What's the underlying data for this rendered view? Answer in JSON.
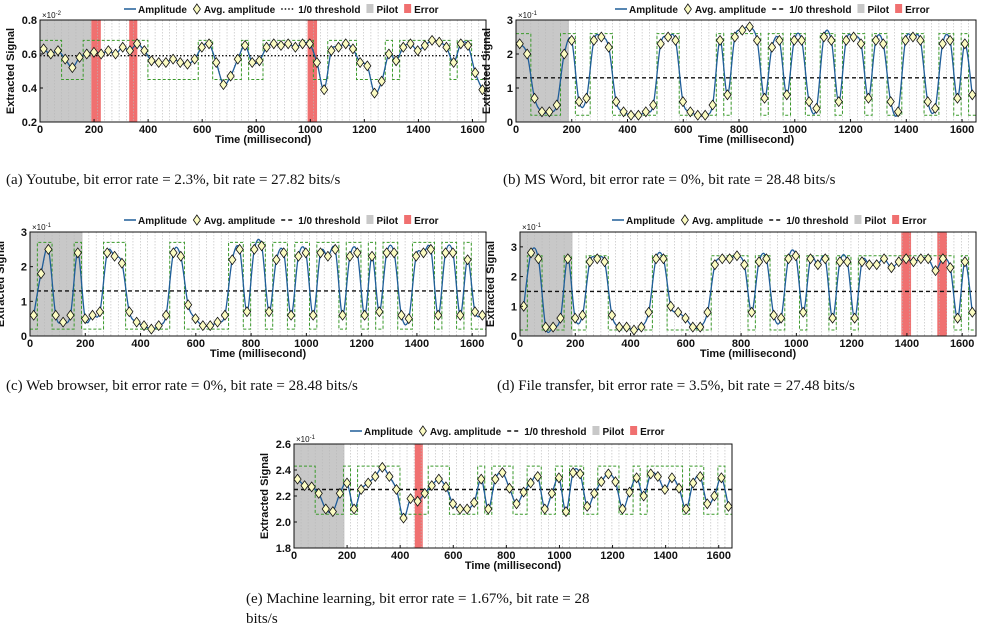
{
  "figure": {
    "legend": [
      "Amplitude",
      "Avg. amplitude",
      "1/0 threshold",
      "Pilot",
      "Error"
    ],
    "ylabel": "Extracted Signal",
    "xlabel": "Time (millisecond)",
    "xticks": [
      "0",
      "200",
      "400",
      "600",
      "800",
      "1000",
      "1200",
      "1400",
      "1600"
    ]
  },
  "captions": [
    "(a)  Youtube, bit error rate = 2.3%, bit rate = 27.82 bits/s",
    "(b)  MS Word, bit error rate = 0%, bit rate = 28.48 bits/s",
    "(c)  Web browser, bit error rate = 0%, bit rate = 28.48 bits/s",
    "(d)  File transfer, bit error rate = 3.5%, bit rate = 27.48 bits/s",
    "(e)  Machine learning, bit error rate = 1.67%, bit rate = 28",
    "bits/s"
  ],
  "colors": {
    "amplitude": "#1f5d99",
    "bits": "#3a9a2a",
    "pilot": "#c8c8c8",
    "error": "#f07070",
    "marker_fill": "#fbfbc2"
  },
  "chart_data": [
    {
      "type": "line",
      "panel": "a",
      "xlabel": "Time (millisecond)",
      "ylabel": "Extracted Signal",
      "multiplier": "×10^-2",
      "xlim": [
        0,
        1650
      ],
      "ylim": [
        0.2,
        0.8
      ],
      "yticks": [
        "0.2",
        "0.4",
        "0.6",
        "0.8"
      ],
      "ytick_values": [
        0.2,
        0.4,
        0.6,
        0.8
      ],
      "threshold": 0.59,
      "threshold_style": "dotted",
      "bit_low": 0.45,
      "bit_high": 0.68,
      "pilot": [
        0,
        190
      ],
      "errors": [
        [
          190,
          225
        ],
        [
          330,
          360
        ],
        [
          990,
          1025
        ]
      ],
      "avg_amplitude": [
        0.63,
        0.6,
        0.62,
        0.57,
        0.52,
        0.58,
        0.6,
        0.61,
        0.6,
        0.62,
        0.6,
        0.64,
        0.62,
        0.66,
        0.62,
        0.56,
        0.55,
        0.55,
        0.57,
        0.55,
        0.54,
        0.57,
        0.64,
        0.66,
        0.55,
        0.42,
        0.47,
        0.57,
        0.65,
        0.55,
        0.56,
        0.64,
        0.66,
        0.65,
        0.66,
        0.64,
        0.66,
        0.66,
        0.55,
        0.39,
        0.62,
        0.64,
        0.66,
        0.63,
        0.55,
        0.53,
        0.37,
        0.44,
        0.6,
        0.56,
        0.64,
        0.66,
        0.62,
        0.65,
        0.68,
        0.67,
        0.64,
        0.55,
        0.66,
        0.65,
        0.49,
        0.39
      ]
    },
    {
      "type": "line",
      "panel": "b",
      "xlabel": "Time (millisecond)",
      "ylabel": "Extracted Signal",
      "multiplier": "×10^-1",
      "xlim": [
        0,
        1650
      ],
      "ylim": [
        0,
        3
      ],
      "yticks": [
        "0",
        "1",
        "2",
        "3"
      ],
      "ytick_values": [
        0,
        1,
        2,
        3
      ],
      "threshold": 1.3,
      "threshold_style": "dashed",
      "bit_low": 0.2,
      "bit_high": 2.6,
      "pilot": [
        0,
        190
      ],
      "errors": [],
      "avg_amplitude": [
        2.3,
        2.0,
        0.7,
        0.3,
        0.3,
        0.5,
        2.0,
        2.4,
        0.6,
        0.7,
        2.4,
        2.5,
        2.2,
        0.6,
        0.3,
        0.2,
        0.2,
        0.3,
        0.5,
        2.3,
        2.5,
        2.4,
        0.6,
        0.3,
        0.2,
        0.2,
        0.5,
        2.4,
        0.8,
        2.5,
        2.7,
        2.8,
        2.4,
        0.7,
        2.2,
        2.4,
        0.8,
        2.4,
        2.4,
        0.6,
        0.4,
        2.5,
        2.4,
        0.6,
        2.4,
        2.5,
        2.3,
        0.7,
        2.4,
        2.3,
        0.6,
        0.3,
        2.4,
        2.5,
        2.4,
        0.6,
        0.4,
        2.3,
        2.4,
        0.7,
        2.3,
        0.8
      ]
    },
    {
      "type": "line",
      "panel": "c",
      "xlabel": "Time (millisecond)",
      "ylabel": "Extracted Signal",
      "multiplier": "×10^-1",
      "xlim": [
        0,
        1650
      ],
      "ylim": [
        0,
        3
      ],
      "yticks": [
        "0",
        "1",
        "2",
        "3"
      ],
      "ytick_values": [
        0,
        1,
        2,
        3
      ],
      "threshold": 1.3,
      "threshold_style": "dashed",
      "bit_low": 0.2,
      "bit_high": 2.7,
      "pilot": [
        0,
        190
      ],
      "errors": [],
      "avg_amplitude": [
        0.6,
        1.8,
        2.5,
        0.6,
        0.4,
        0.6,
        2.4,
        0.5,
        0.6,
        0.7,
        2.4,
        2.3,
        2.1,
        0.7,
        0.4,
        0.3,
        0.2,
        0.3,
        0.6,
        2.4,
        2.3,
        0.9,
        0.5,
        0.3,
        0.3,
        0.4,
        0.6,
        2.2,
        2.5,
        0.7,
        2.5,
        2.6,
        0.7,
        2.2,
        2.4,
        0.6,
        2.3,
        2.4,
        0.6,
        2.4,
        2.3,
        2.5,
        0.6,
        2.3,
        2.4,
        0.6,
        2.3,
        0.7,
        2.4,
        2.4,
        0.6,
        0.5,
        2.3,
        2.4,
        2.5,
        0.6,
        2.4,
        2.4,
        0.6,
        2.2,
        0.7,
        0.6
      ]
    },
    {
      "type": "line",
      "panel": "d",
      "xlabel": "Time (millisecond)",
      "ylabel": "Extracted Signal",
      "multiplier": "×10^-1",
      "xlim": [
        0,
        1650
      ],
      "ylim": [
        0,
        3.5
      ],
      "yticks": [
        "0",
        "1",
        "2",
        "3"
      ],
      "ytick_values": [
        0,
        1,
        2,
        3
      ],
      "threshold": 1.5,
      "threshold_style": "dashed",
      "bit_low": 0.2,
      "bit_high": 2.7,
      "pilot": [
        0,
        190
      ],
      "errors": [
        [
          1380,
          1415
        ],
        [
          1510,
          1545
        ]
      ],
      "avg_amplitude": [
        1.0,
        2.8,
        2.6,
        0.3,
        0.3,
        0.6,
        2.6,
        0.6,
        0.7,
        2.5,
        2.6,
        2.5,
        0.7,
        0.3,
        0.3,
        0.2,
        0.3,
        0.8,
        2.6,
        2.6,
        1.0,
        0.8,
        0.6,
        0.3,
        0.3,
        0.8,
        2.4,
        2.6,
        2.6,
        2.7,
        2.4,
        0.8,
        2.5,
        2.6,
        0.7,
        0.6,
        2.6,
        2.7,
        0.8,
        2.6,
        2.4,
        2.6,
        0.6,
        2.5,
        2.5,
        0.6,
        2.5,
        2.4,
        2.4,
        2.6,
        2.3,
        2.5,
        2.6,
        2.5,
        2.6,
        2.6,
        2.2,
        2.6,
        2.3,
        0.6,
        2.5,
        0.8
      ]
    },
    {
      "type": "line",
      "panel": "e",
      "xlabel": "Time (millisecond)",
      "ylabel": "Extracted Signal",
      "multiplier": "×10^-1",
      "xlim": [
        0,
        1650
      ],
      "ylim": [
        1.8,
        2.6
      ],
      "yticks": [
        "1.8",
        "2.0",
        "2.2",
        "2.4",
        "2.6"
      ],
      "ytick_values": [
        1.8,
        2.0,
        2.2,
        2.4,
        2.6
      ],
      "threshold": 2.25,
      "threshold_style": "dashed",
      "bit_low": 2.06,
      "bit_high": 2.43,
      "pilot": [
        0,
        190
      ],
      "errors": [
        [
          455,
          485
        ]
      ],
      "avg_amplitude": [
        2.33,
        2.28,
        2.27,
        2.22,
        2.1,
        2.08,
        2.22,
        2.3,
        2.1,
        2.25,
        2.3,
        2.35,
        2.42,
        2.35,
        2.25,
        2.03,
        2.18,
        2.16,
        2.22,
        2.28,
        2.33,
        2.27,
        2.14,
        2.1,
        2.1,
        2.15,
        2.33,
        2.1,
        2.33,
        2.38,
        2.26,
        2.14,
        2.23,
        2.3,
        2.35,
        2.1,
        2.22,
        2.34,
        2.08,
        2.38,
        2.37,
        2.12,
        2.22,
        2.31,
        2.37,
        2.31,
        2.1,
        2.23,
        2.34,
        2.2,
        2.37,
        2.35,
        2.25,
        2.34,
        2.26,
        2.1,
        2.3,
        2.35,
        2.14,
        2.2,
        2.34,
        2.12
      ]
    }
  ]
}
